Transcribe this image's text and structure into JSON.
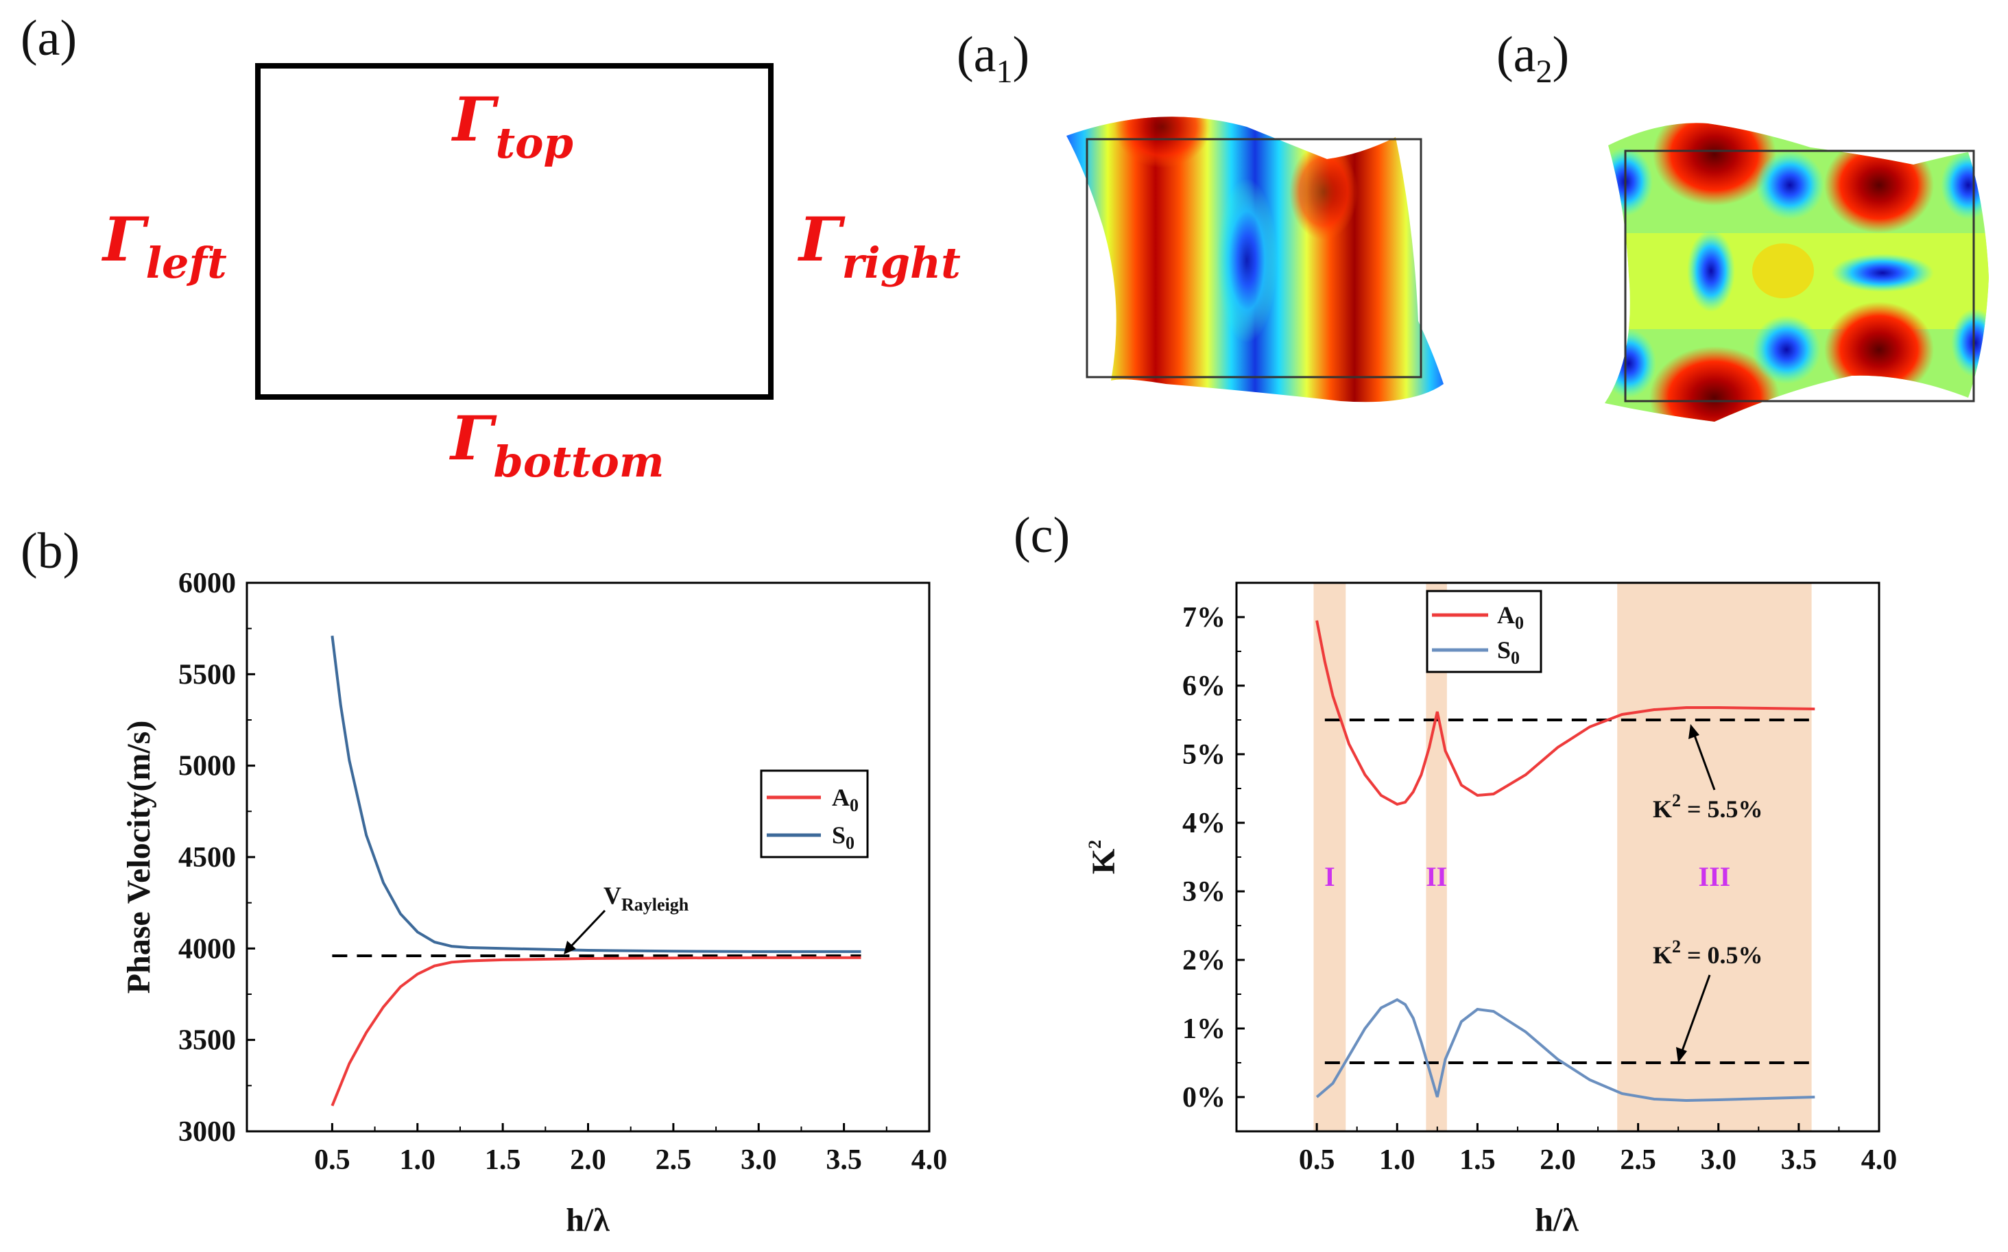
{
  "panels": {
    "a": {
      "label": "(a)",
      "boundaries": {
        "top": {
          "symbol": "Γ",
          "sub": "top"
        },
        "left": {
          "symbol": "Γ",
          "sub": "left"
        },
        "right": {
          "symbol": "Γ",
          "sub": "right"
        },
        "bottom": {
          "symbol": "Γ",
          "sub": "bottom"
        }
      }
    },
    "a1": {
      "label": "(a",
      "sub": "1",
      "close": ")"
    },
    "a2": {
      "label": "(a",
      "sub": "2",
      "close": ")"
    },
    "b": {
      "label": "(b)"
    },
    "c": {
      "label": "(c)"
    }
  },
  "colors": {
    "a0": "#ee3b3b",
    "s0": "#3d6a9a",
    "s0_c": "#6a8fbf",
    "band": "#f8dcc4",
    "boundary": "#ee1111",
    "region": "#cc33ee"
  },
  "chart_data": [
    {
      "id": "b",
      "type": "line",
      "xlabel": "h/λ",
      "ylabel": "Phase Velocity(m/s)",
      "xlim": [
        0.0,
        4.0
      ],
      "ylim": [
        3000,
        6000
      ],
      "xticks": [
        "0.5",
        "1.0",
        "1.5",
        "2.0",
        "2.5",
        "3.0",
        "3.5",
        "4.0"
      ],
      "yticks": [
        "3000",
        "3500",
        "4000",
        "4500",
        "5000",
        "5500",
        "6000"
      ],
      "legend": [
        {
          "name": "A",
          "sub": "0",
          "color": "#ee3b3b"
        },
        {
          "name": "S",
          "sub": "0",
          "color": "#3d6a9a"
        }
      ],
      "series": [
        {
          "name": "A0",
          "color": "#ee3b3b",
          "x": [
            0.5,
            0.6,
            0.7,
            0.8,
            0.9,
            1.0,
            1.1,
            1.2,
            1.3,
            1.5,
            2.0,
            2.5,
            3.0,
            3.6
          ],
          "y": [
            3140,
            3370,
            3540,
            3680,
            3790,
            3860,
            3905,
            3925,
            3932,
            3938,
            3945,
            3948,
            3950,
            3950
          ]
        },
        {
          "name": "S0",
          "color": "#3d6a9a",
          "x": [
            0.5,
            0.55,
            0.6,
            0.7,
            0.8,
            0.9,
            1.0,
            1.1,
            1.2,
            1.3,
            1.5,
            2.0,
            2.5,
            3.0,
            3.6
          ],
          "y": [
            5710,
            5330,
            5030,
            4620,
            4360,
            4190,
            4090,
            4035,
            4012,
            4005,
            4000,
            3990,
            3985,
            3983,
            3983
          ]
        }
      ],
      "reference": {
        "y": 3960,
        "x": [
          0.5,
          3.6
        ],
        "label_main": "V",
        "label_sub": "Rayleigh"
      }
    },
    {
      "id": "c",
      "type": "line",
      "xlabel": "h/λ",
      "ylabel": "K",
      "ylabel_sup": "2",
      "xlim": [
        0.0,
        4.0
      ],
      "ylim": [
        -0.5,
        7.5
      ],
      "xticks": [
        "0.5",
        "1.0",
        "1.5",
        "2.0",
        "2.5",
        "3.0",
        "3.5",
        "4.0"
      ],
      "yticks": [
        "0%",
        "1%",
        "2%",
        "3%",
        "4%",
        "5%",
        "6%",
        "7%"
      ],
      "legend": [
        {
          "name": "A",
          "sub": "0",
          "color": "#ee3b3b"
        },
        {
          "name": "S",
          "sub": "0",
          "color": "#6a8fbf"
        }
      ],
      "series": [
        {
          "name": "A0",
          "color": "#ee3b3b",
          "x": [
            0.5,
            0.55,
            0.6,
            0.7,
            0.8,
            0.9,
            1.0,
            1.05,
            1.1,
            1.15,
            1.2,
            1.25,
            1.3,
            1.4,
            1.5,
            1.6,
            1.8,
            2.0,
            2.2,
            2.4,
            2.6,
            2.8,
            3.0,
            3.3,
            3.6
          ],
          "y": [
            6.95,
            6.35,
            5.85,
            5.15,
            4.7,
            4.4,
            4.27,
            4.3,
            4.45,
            4.7,
            5.1,
            5.62,
            5.05,
            4.55,
            4.4,
            4.42,
            4.7,
            5.1,
            5.4,
            5.58,
            5.65,
            5.68,
            5.68,
            5.67,
            5.66
          ]
        },
        {
          "name": "S0",
          "color": "#6a8fbf",
          "x": [
            0.5,
            0.6,
            0.7,
            0.8,
            0.9,
            1.0,
            1.05,
            1.1,
            1.15,
            1.2,
            1.25,
            1.3,
            1.4,
            1.5,
            1.6,
            1.8,
            2.0,
            2.2,
            2.4,
            2.6,
            2.8,
            3.0,
            3.3,
            3.6
          ],
          "y": [
            0.0,
            0.2,
            0.6,
            1.0,
            1.3,
            1.42,
            1.35,
            1.15,
            0.8,
            0.4,
            0.0,
            0.55,
            1.1,
            1.28,
            1.25,
            0.95,
            0.55,
            0.25,
            0.05,
            -0.03,
            -0.05,
            -0.04,
            -0.02,
            0.0
          ]
        }
      ],
      "references": [
        {
          "y": 5.5,
          "x": [
            0.55,
            3.6
          ],
          "label_main": "K",
          "label_sup": "2",
          "label_rest": " = 5.5%"
        },
        {
          "y": 0.5,
          "x": [
            0.55,
            3.6
          ],
          "label_main": "K",
          "label_sup": "2",
          "label_rest": " = 0.5%"
        }
      ],
      "bands": [
        {
          "label": "I",
          "x": [
            0.48,
            0.68
          ]
        },
        {
          "label": "II",
          "x": [
            1.18,
            1.31
          ]
        },
        {
          "label": "III",
          "x": [
            2.37,
            3.58
          ]
        }
      ]
    }
  ]
}
